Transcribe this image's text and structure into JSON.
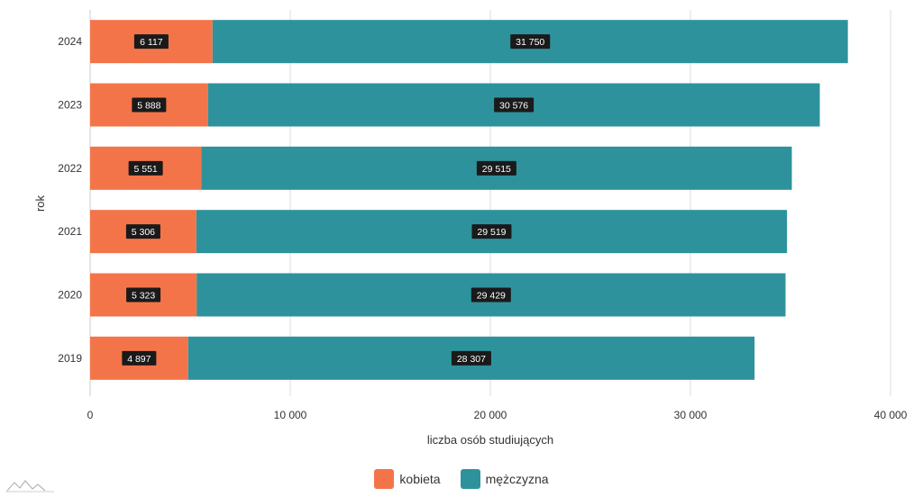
{
  "chart_data": {
    "type": "bar",
    "orientation": "horizontal",
    "stacked": true,
    "categories": [
      "2024",
      "2023",
      "2022",
      "2021",
      "2020",
      "2019"
    ],
    "series": [
      {
        "name": "kobieta",
        "color": "#f4744a",
        "values": [
          6117,
          5888,
          5551,
          5306,
          5323,
          4897
        ]
      },
      {
        "name": "mężczyzna",
        "color": "#2e929c",
        "values": [
          31750,
          30576,
          29515,
          29519,
          29429,
          28307
        ]
      }
    ],
    "data_labels": [
      [
        "6 117",
        "5 888",
        "5 551",
        "5 306",
        "5 323",
        "4 897"
      ],
      [
        "31 750",
        "30 576",
        "29 515",
        "29 519",
        "29 429",
        "28 307"
      ]
    ],
    "xlabel": "liczba osób studiujących",
    "ylabel": "rok",
    "xlim": [
      0,
      40000
    ],
    "xticks": [
      0,
      10000,
      20000,
      30000,
      40000
    ],
    "xtick_labels": [
      "0",
      "10 000",
      "20 000",
      "30 000",
      "40 000"
    ],
    "grid": "vertical",
    "legend_position": "bottom-center",
    "label_background": "#1a1a1a"
  }
}
